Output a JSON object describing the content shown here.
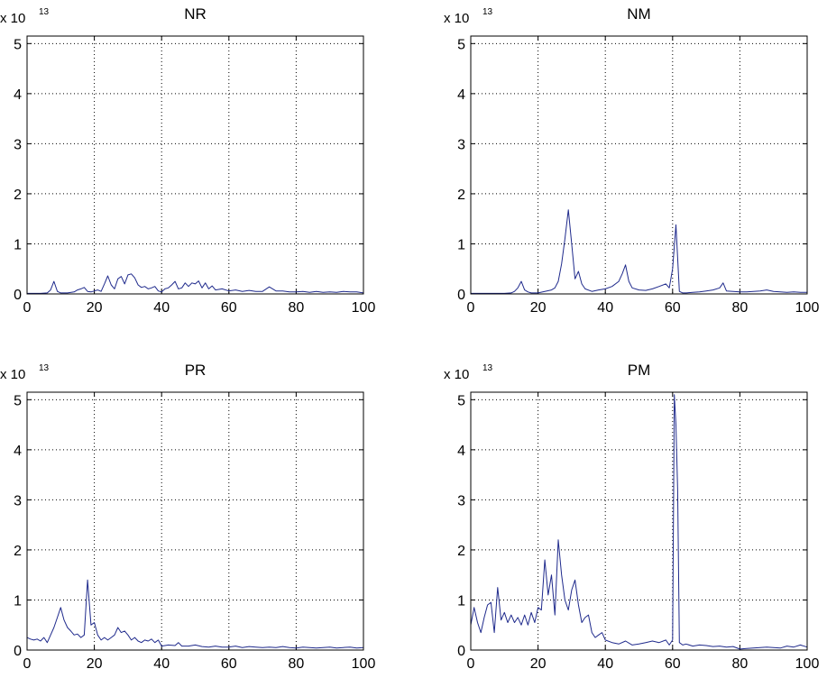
{
  "figure": {
    "line_color": "#1f2a8c",
    "axis_color": "#000000",
    "grid_color": "#000000",
    "background": "#ffffff"
  },
  "chart_data": [
    {
      "type": "line",
      "title": "NR",
      "exponent_label": "x 10",
      "exponent": "13",
      "xlim": [
        0,
        100
      ],
      "ylim": [
        0,
        5.15
      ],
      "xticks": [
        0,
        20,
        40,
        60,
        80,
        100
      ],
      "yticks": [
        0,
        1,
        2,
        3,
        4,
        5
      ],
      "grid": true,
      "x": [
        0,
        2,
        4,
        6,
        7,
        8,
        9,
        10,
        12,
        14,
        15,
        16,
        17,
        18,
        19,
        20,
        21,
        22,
        23,
        24,
        25,
        26,
        27,
        28,
        29,
        30,
        31,
        32,
        33,
        34,
        35,
        36,
        37,
        38,
        39,
        40,
        41,
        42,
        43,
        44,
        45,
        46,
        47,
        48,
        49,
        50,
        51,
        52,
        53,
        54,
        55,
        56,
        58,
        60,
        62,
        64,
        66,
        68,
        70,
        72,
        74,
        76,
        78,
        80,
        82,
        84,
        86,
        88,
        90,
        92,
        94,
        96,
        98,
        100
      ],
      "y": [
        0.01,
        0.01,
        0.01,
        0.02,
        0.08,
        0.25,
        0.05,
        0.02,
        0.02,
        0.04,
        0.08,
        0.1,
        0.13,
        0.05,
        0.04,
        0.06,
        0.08,
        0.05,
        0.2,
        0.36,
        0.18,
        0.1,
        0.3,
        0.35,
        0.2,
        0.38,
        0.4,
        0.32,
        0.18,
        0.13,
        0.15,
        0.1,
        0.12,
        0.15,
        0.06,
        0.04,
        0.1,
        0.12,
        0.18,
        0.25,
        0.1,
        0.12,
        0.22,
        0.15,
        0.22,
        0.2,
        0.26,
        0.12,
        0.22,
        0.1,
        0.16,
        0.08,
        0.1,
        0.06,
        0.08,
        0.05,
        0.07,
        0.05,
        0.05,
        0.14,
        0.06,
        0.06,
        0.04,
        0.04,
        0.05,
        0.03,
        0.05,
        0.03,
        0.04,
        0.03,
        0.05,
        0.04,
        0.04,
        0.02
      ]
    },
    {
      "type": "line",
      "title": "NM",
      "exponent_label": "x 10",
      "exponent": "13",
      "xlim": [
        0,
        100
      ],
      "ylim": [
        0,
        5.15
      ],
      "xticks": [
        0,
        20,
        40,
        60,
        80,
        100
      ],
      "yticks": [
        0,
        1,
        2,
        3,
        4,
        5
      ],
      "grid": true,
      "x": [
        0,
        2,
        4,
        6,
        8,
        10,
        12,
        13,
        14,
        15,
        16,
        17,
        18,
        20,
        22,
        24,
        25,
        26,
        27,
        28,
        29,
        30,
        31,
        32,
        33,
        34,
        36,
        38,
        40,
        42,
        44,
        45,
        46,
        47,
        48,
        50,
        52,
        54,
        56,
        58,
        59,
        60,
        61,
        62,
        63,
        64,
        66,
        68,
        70,
        72,
        74,
        75,
        76,
        78,
        80,
        82,
        84,
        86,
        88,
        90,
        92,
        94,
        96,
        98,
        100
      ],
      "y": [
        0.01,
        0.01,
        0.01,
        0.01,
        0.01,
        0.01,
        0.02,
        0.05,
        0.12,
        0.25,
        0.08,
        0.04,
        0.02,
        0.02,
        0.05,
        0.08,
        0.12,
        0.25,
        0.6,
        1.1,
        1.68,
        1.0,
        0.3,
        0.45,
        0.2,
        0.1,
        0.05,
        0.08,
        0.1,
        0.15,
        0.25,
        0.4,
        0.58,
        0.25,
        0.12,
        0.08,
        0.07,
        0.1,
        0.15,
        0.2,
        0.12,
        0.5,
        1.38,
        0.05,
        0.02,
        0.02,
        0.03,
        0.04,
        0.06,
        0.08,
        0.12,
        0.22,
        0.06,
        0.05,
        0.04,
        0.04,
        0.05,
        0.06,
        0.08,
        0.05,
        0.04,
        0.03,
        0.04,
        0.03,
        0.03
      ]
    },
    {
      "type": "line",
      "title": "PR",
      "exponent_label": "x 10",
      "exponent": "13",
      "xlim": [
        0,
        100
      ],
      "ylim": [
        0,
        5.15
      ],
      "xticks": [
        0,
        20,
        40,
        60,
        80,
        100
      ],
      "yticks": [
        0,
        1,
        2,
        3,
        4,
        5
      ],
      "grid": true,
      "x": [
        0,
        1,
        2,
        3,
        4,
        5,
        6,
        7,
        8,
        9,
        10,
        11,
        12,
        13,
        14,
        15,
        16,
        17,
        18,
        19,
        20,
        21,
        22,
        23,
        24,
        25,
        26,
        27,
        28,
        29,
        30,
        31,
        32,
        33,
        34,
        35,
        36,
        37,
        38,
        39,
        40,
        42,
        44,
        45,
        46,
        48,
        50,
        52,
        54,
        56,
        58,
        60,
        62,
        64,
        66,
        68,
        70,
        72,
        74,
        76,
        78,
        80,
        82,
        84,
        86,
        88,
        90,
        92,
        94,
        96,
        98,
        100
      ],
      "y": [
        0.25,
        0.22,
        0.2,
        0.22,
        0.18,
        0.25,
        0.15,
        0.3,
        0.45,
        0.65,
        0.85,
        0.6,
        0.45,
        0.38,
        0.3,
        0.32,
        0.25,
        0.3,
        1.4,
        0.5,
        0.55,
        0.3,
        0.2,
        0.25,
        0.2,
        0.25,
        0.3,
        0.45,
        0.35,
        0.38,
        0.3,
        0.2,
        0.25,
        0.18,
        0.15,
        0.2,
        0.18,
        0.22,
        0.15,
        0.2,
        0.08,
        0.1,
        0.09,
        0.15,
        0.08,
        0.08,
        0.1,
        0.07,
        0.06,
        0.08,
        0.06,
        0.06,
        0.08,
        0.05,
        0.07,
        0.06,
        0.05,
        0.06,
        0.05,
        0.07,
        0.05,
        0.04,
        0.06,
        0.05,
        0.04,
        0.05,
        0.06,
        0.04,
        0.05,
        0.06,
        0.04,
        0.05
      ]
    },
    {
      "type": "line",
      "title": "PM",
      "exponent_label": "x 10",
      "exponent": "13",
      "xlim": [
        0,
        100
      ],
      "ylim": [
        0,
        5.15
      ],
      "xticks": [
        0,
        20,
        40,
        60,
        80,
        100
      ],
      "yticks": [
        0,
        1,
        2,
        3,
        4,
        5
      ],
      "grid": true,
      "x": [
        0,
        1,
        2,
        3,
        4,
        5,
        6,
        7,
        8,
        9,
        10,
        11,
        12,
        13,
        14,
        15,
        16,
        17,
        18,
        19,
        20,
        21,
        22,
        23,
        24,
        25,
        26,
        27,
        28,
        29,
        30,
        31,
        32,
        33,
        34,
        35,
        36,
        37,
        38,
        39,
        40,
        42,
        44,
        46,
        48,
        50,
        52,
        54,
        56,
        58,
        59,
        60,
        60.5,
        61,
        61.5,
        62,
        63,
        64,
        66,
        68,
        70,
        72,
        74,
        76,
        78,
        80,
        82,
        84,
        86,
        88,
        90,
        92,
        94,
        96,
        98,
        100
      ],
      "y": [
        0.5,
        0.85,
        0.55,
        0.35,
        0.65,
        0.9,
        0.95,
        0.35,
        1.25,
        0.6,
        0.75,
        0.55,
        0.7,
        0.55,
        0.65,
        0.5,
        0.7,
        0.5,
        0.75,
        0.55,
        0.85,
        0.8,
        1.8,
        1.1,
        1.5,
        0.7,
        2.2,
        1.5,
        1.0,
        0.8,
        1.2,
        1.4,
        0.9,
        0.55,
        0.65,
        0.7,
        0.35,
        0.25,
        0.3,
        0.35,
        0.2,
        0.15,
        0.12,
        0.18,
        0.1,
        0.12,
        0.15,
        0.18,
        0.15,
        0.2,
        0.1,
        0.2,
        5.1,
        4.5,
        3.2,
        0.15,
        0.1,
        0.12,
        0.08,
        0.1,
        0.09,
        0.07,
        0.08,
        0.06,
        0.07,
        0.02,
        0.03,
        0.04,
        0.05,
        0.06,
        0.05,
        0.04,
        0.08,
        0.06,
        0.1,
        0.06
      ]
    }
  ]
}
